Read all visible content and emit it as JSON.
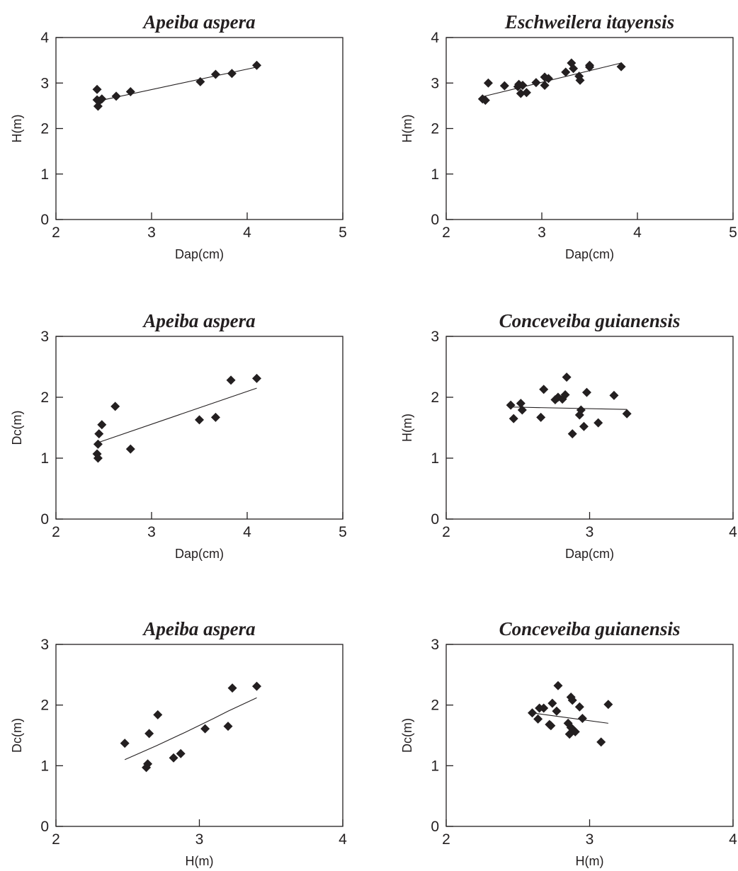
{
  "colors": {
    "ink": "#231f20",
    "background": "#ffffff"
  },
  "chart_data": [
    {
      "type": "scatter",
      "title": "Apeiba aspera",
      "xlabel": "Dap(cm)",
      "ylabel": "H(m)",
      "xlim": [
        2,
        5
      ],
      "ylim": [
        0,
        4
      ],
      "xticks": [
        2,
        3,
        4,
        5
      ],
      "yticks": [
        0,
        1,
        2,
        3,
        4
      ],
      "grid": false,
      "points": [
        [
          2.43,
          2.86
        ],
        [
          2.43,
          2.63
        ],
        [
          2.44,
          2.49
        ],
        [
          2.45,
          2.6
        ],
        [
          2.48,
          2.65
        ],
        [
          2.63,
          2.71
        ],
        [
          2.78,
          2.81
        ],
        [
          3.51,
          3.03
        ],
        [
          3.67,
          3.19
        ],
        [
          3.84,
          3.21
        ],
        [
          4.1,
          3.39
        ]
      ],
      "trendline": {
        "type": "linear",
        "from": [
          2.43,
          2.6
        ],
        "to": [
          4.1,
          3.35
        ]
      }
    },
    {
      "type": "scatter",
      "title": "Eschweilera itayensis",
      "xlabel": "Dap(cm)",
      "ylabel": "H(m)",
      "xlim": [
        2,
        5
      ],
      "ylim": [
        0,
        4
      ],
      "xticks": [
        2,
        3,
        4,
        5
      ],
      "yticks": [
        0,
        1,
        2,
        3,
        4
      ],
      "grid": false,
      "points": [
        [
          2.38,
          2.65
        ],
        [
          2.41,
          2.62
        ],
        [
          2.44,
          3.0
        ],
        [
          2.61,
          2.94
        ],
        [
          2.75,
          2.92
        ],
        [
          2.76,
          2.97
        ],
        [
          2.78,
          2.77
        ],
        [
          2.8,
          2.95
        ],
        [
          2.84,
          2.79
        ],
        [
          2.94,
          3.01
        ],
        [
          3.03,
          2.95
        ],
        [
          3.03,
          3.13
        ],
        [
          3.07,
          3.1
        ],
        [
          3.25,
          3.24
        ],
        [
          3.31,
          3.44
        ],
        [
          3.33,
          3.32
        ],
        [
          3.39,
          3.15
        ],
        [
          3.4,
          3.06
        ],
        [
          3.5,
          3.35
        ],
        [
          3.5,
          3.39
        ],
        [
          3.83,
          3.36
        ]
      ],
      "trendline": {
        "type": "linear",
        "from": [
          2.38,
          2.7
        ],
        "to": [
          3.83,
          3.44
        ]
      }
    },
    {
      "type": "scatter",
      "title": "Apeiba aspera",
      "xlabel": "Dap(cm)",
      "ylabel": "Dc(m)",
      "xlim": [
        2,
        5
      ],
      "ylim": [
        0,
        3
      ],
      "xticks": [
        2,
        3,
        4,
        5
      ],
      "yticks": [
        0,
        1,
        2,
        3
      ],
      "grid": false,
      "points": [
        [
          2.43,
          1.07
        ],
        [
          2.44,
          1.0
        ],
        [
          2.44,
          1.23
        ],
        [
          2.45,
          1.4
        ],
        [
          2.48,
          1.55
        ],
        [
          2.62,
          1.85
        ],
        [
          2.78,
          1.15
        ],
        [
          3.5,
          1.63
        ],
        [
          3.67,
          1.67
        ],
        [
          3.83,
          2.28
        ],
        [
          4.1,
          2.31
        ]
      ],
      "trendline": {
        "type": "linear",
        "from": [
          2.43,
          1.25
        ],
        "to": [
          4.1,
          2.15
        ]
      }
    },
    {
      "type": "scatter",
      "title": "Conceveiba guianensis",
      "xlabel": "Dap(cm)",
      "ylabel": "H(m)",
      "xlim": [
        2,
        4
      ],
      "ylim": [
        0,
        3
      ],
      "xticks": [
        2,
        3,
        4
      ],
      "yticks": [
        0,
        1,
        2,
        3
      ],
      "grid": false,
      "points": [
        [
          2.45,
          1.87
        ],
        [
          2.47,
          1.65
        ],
        [
          2.52,
          1.9
        ],
        [
          2.53,
          1.79
        ],
        [
          2.66,
          1.67
        ],
        [
          2.68,
          2.13
        ],
        [
          2.76,
          1.96
        ],
        [
          2.78,
          2.0
        ],
        [
          2.81,
          1.97
        ],
        [
          2.83,
          2.04
        ],
        [
          2.84,
          2.33
        ],
        [
          2.88,
          1.4
        ],
        [
          2.93,
          1.71
        ],
        [
          2.94,
          1.79
        ],
        [
          2.96,
          1.52
        ],
        [
          2.98,
          2.08
        ],
        [
          3.06,
          1.58
        ],
        [
          3.17,
          2.03
        ],
        [
          3.26,
          1.73
        ]
      ],
      "trendline": {
        "type": "linear",
        "from": [
          2.45,
          1.84
        ],
        "to": [
          3.26,
          1.8
        ]
      }
    },
    {
      "type": "scatter",
      "title": "Apeiba aspera",
      "xlabel": "H(m)",
      "ylabel": "Dc(m)",
      "xlim": [
        2,
        4
      ],
      "ylim": [
        0,
        3
      ],
      "xticks": [
        2,
        3,
        4
      ],
      "yticks": [
        0,
        1,
        2,
        3
      ],
      "grid": false,
      "points": [
        [
          2.48,
          1.37
        ],
        [
          2.63,
          0.97
        ],
        [
          2.64,
          1.03
        ],
        [
          2.65,
          1.53
        ],
        [
          2.71,
          1.84
        ],
        [
          2.82,
          1.13
        ],
        [
          2.87,
          1.2
        ],
        [
          3.04,
          1.61
        ],
        [
          3.2,
          1.65
        ],
        [
          3.23,
          2.28
        ],
        [
          3.4,
          2.31
        ]
      ],
      "trendline": {
        "type": "curve",
        "points": [
          [
            2.48,
            1.1
          ],
          [
            2.7,
            1.33
          ],
          [
            2.9,
            1.55
          ],
          [
            3.1,
            1.78
          ],
          [
            3.2,
            1.9
          ],
          [
            3.4,
            2.12
          ]
        ]
      }
    },
    {
      "type": "scatter",
      "title": "Conceveiba guianensis",
      "xlabel": "H(m)",
      "ylabel": "Dc(m)",
      "xlim": [
        2,
        4
      ],
      "ylim": [
        0,
        3
      ],
      "xticks": [
        2,
        3,
        4
      ],
      "yticks": [
        0,
        1,
        2,
        3
      ],
      "grid": false,
      "points": [
        [
          2.6,
          1.87
        ],
        [
          2.64,
          1.77
        ],
        [
          2.65,
          1.95
        ],
        [
          2.68,
          1.95
        ],
        [
          2.72,
          1.68
        ],
        [
          2.73,
          1.66
        ],
        [
          2.74,
          2.03
        ],
        [
          2.77,
          1.9
        ],
        [
          2.78,
          2.32
        ],
        [
          2.85,
          1.7
        ],
        [
          2.86,
          1.52
        ],
        [
          2.87,
          1.63
        ],
        [
          2.87,
          2.13
        ],
        [
          2.88,
          2.08
        ],
        [
          2.9,
          1.56
        ],
        [
          2.93,
          1.97
        ],
        [
          2.95,
          1.78
        ],
        [
          3.08,
          1.39
        ],
        [
          3.13,
          2.01
        ]
      ],
      "trendline": {
        "type": "linear",
        "from": [
          2.6,
          1.87
        ],
        "to": [
          3.13,
          1.7
        ]
      }
    }
  ]
}
